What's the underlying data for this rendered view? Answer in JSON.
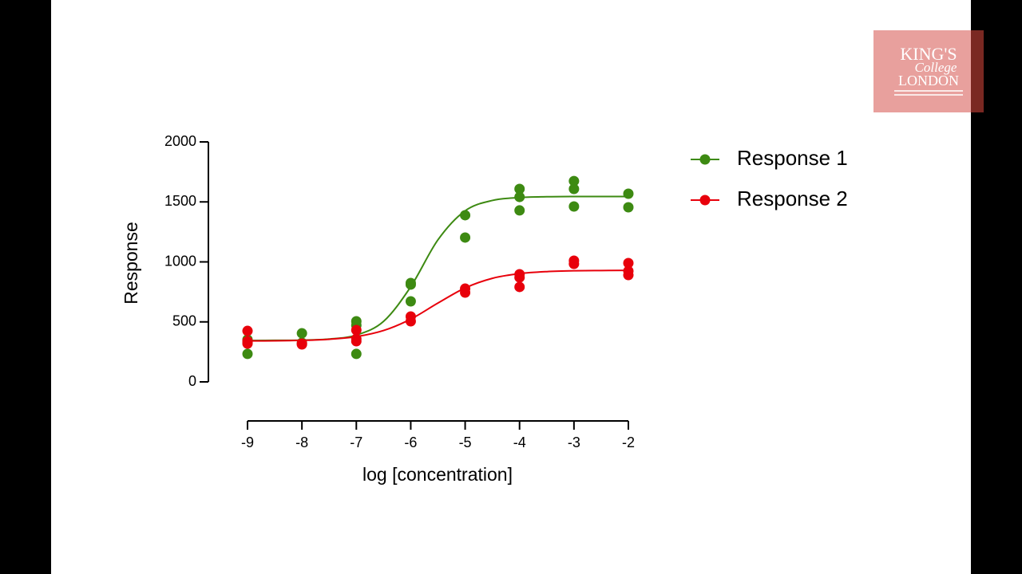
{
  "chart_data": {
    "type": "scatter",
    "xlabel": "log [concentration]",
    "ylabel": "Response",
    "xlim": [
      -9,
      -2
    ],
    "xticks": [
      -9,
      -8,
      -7,
      -6,
      -5,
      -4,
      -3,
      -2
    ],
    "ylim": [
      0,
      2000
    ],
    "yticks": [
      0,
      500,
      1000,
      1500,
      2000
    ],
    "legend": "right",
    "series": [
      {
        "name": "Response 1",
        "color": "#3d8a12",
        "x": [
          -9,
          -9,
          -9,
          -8,
          -8,
          -7,
          -7,
          -7,
          -6,
          -6,
          -6,
          -5,
          -5,
          -4,
          -4,
          -4,
          -3,
          -3,
          -3,
          -2,
          -2
        ],
        "values": [
          352,
          233,
          326,
          405,
          326,
          505,
          233,
          472,
          811,
          671,
          824,
          1389,
          1203,
          1608,
          1541,
          1429,
          1674,
          1608,
          1462,
          1568,
          1455
        ],
        "fit_x": [
          -9,
          -8.5,
          -8,
          -7.5,
          -7,
          -6.5,
          -6,
          -5.5,
          -5,
          -4.5,
          -4,
          -3.5,
          -3,
          -2.5,
          -2
        ],
        "fit_values": [
          345,
          346,
          348,
          357,
          390,
          504,
          793,
          1184,
          1426,
          1512,
          1536,
          1543,
          1545,
          1545,
          1545
        ]
      },
      {
        "name": "Response 2",
        "color": "#e8000b",
        "x": [
          -9,
          -9,
          -9,
          -8,
          -8,
          -7,
          -7,
          -7,
          -6,
          -6,
          -5,
          -5,
          -4,
          -4,
          -4,
          -3,
          -3,
          -2,
          -2,
          -2
        ],
        "values": [
          425,
          319,
          339,
          319,
          312,
          432,
          339,
          359,
          545,
          505,
          777,
          744,
          897,
          870,
          791,
          1010,
          983,
          990,
          924,
          890
        ],
        "fit_x": [
          -9,
          -8.5,
          -8,
          -7.5,
          -7,
          -6.5,
          -6,
          -5.5,
          -5,
          -4.5,
          -4,
          -3.5,
          -3,
          -2.5,
          -2
        ],
        "fit_values": [
          341,
          342,
          346,
          355,
          377,
          428,
          523,
          657,
          783,
          863,
          902,
          919,
          926,
          928,
          929
        ]
      }
    ]
  },
  "logo": {
    "line1": "KING'S",
    "line2": "College",
    "line3": "LONDON"
  }
}
